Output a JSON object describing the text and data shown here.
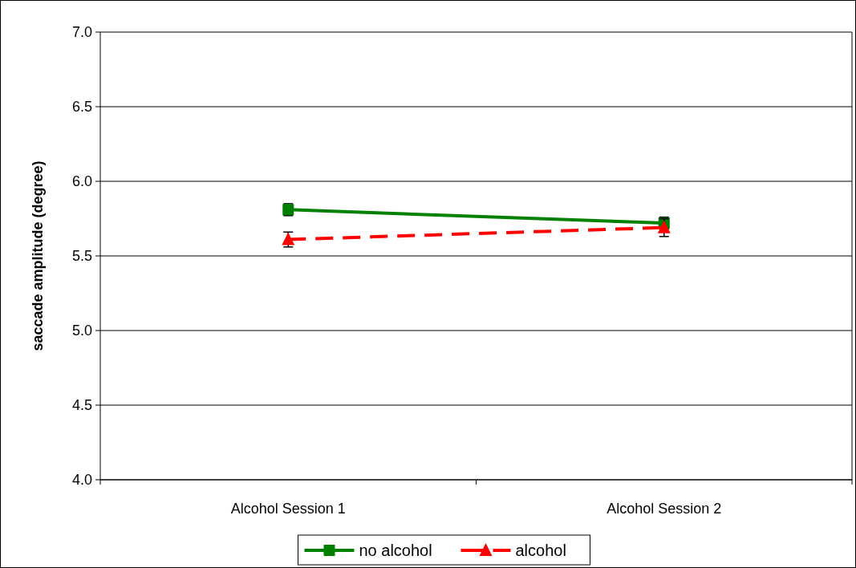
{
  "chart_data": {
    "type": "line",
    "ylabel": "saccade amplitude (degree)",
    "categories": [
      "Alcohol Session 1",
      "Alcohol Session 2"
    ],
    "series": [
      {
        "name": "no alcohol",
        "color": "#008000",
        "values": [
          5.81,
          5.72
        ],
        "errors": [
          0.04,
          0.04
        ],
        "marker": "square",
        "line_style": "solid"
      },
      {
        "name": "alcohol",
        "color": "#ff0000",
        "values": [
          5.61,
          5.69
        ],
        "errors": [
          0.05,
          0.06
        ],
        "marker": "triangle",
        "line_style": "dashed"
      }
    ],
    "ylim": [
      4.0,
      7.0
    ],
    "yticks": [
      {
        "value": 4,
        "label": "4.0"
      },
      {
        "value": 4.5,
        "label": "4.5"
      },
      {
        "value": 5,
        "label": "5.0"
      },
      {
        "value": 5.5,
        "label": "5.5"
      },
      {
        "value": 6,
        "label": "6.0"
      },
      {
        "value": 6.5,
        "label": "6.5"
      },
      {
        "value": 7,
        "label": "7.0"
      }
    ],
    "grid": "y",
    "legend": "bottom"
  }
}
